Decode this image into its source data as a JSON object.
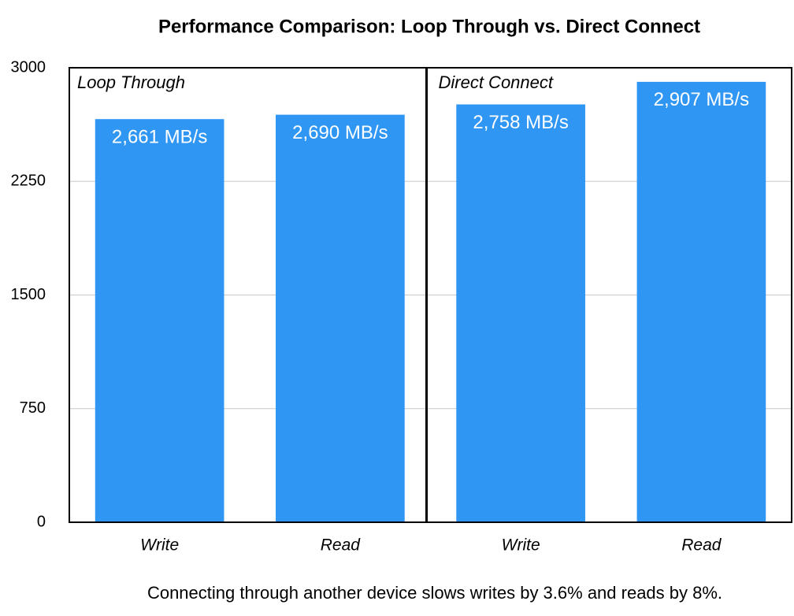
{
  "chart_data": {
    "type": "bar",
    "title": "Performance Comparison: Loop Through vs. Direct Connect",
    "groups": [
      "Loop Through",
      "Direct Connect"
    ],
    "categories": [
      "Write",
      "Read",
      "Write",
      "Read"
    ],
    "values": [
      2661,
      2690,
      2758,
      2907
    ],
    "value_labels": [
      "2,661 MB/s",
      "2,690 MB/s",
      "2,758 MB/s",
      "2,907 MB/s"
    ],
    "color": "#2f96f3",
    "ylim": [
      0,
      3000
    ],
    "yticks": [
      0,
      750,
      1500,
      2250,
      3000
    ],
    "grid": true,
    "annotation": "Connecting through another device slows writes by 3.6% and reads by 8%."
  }
}
